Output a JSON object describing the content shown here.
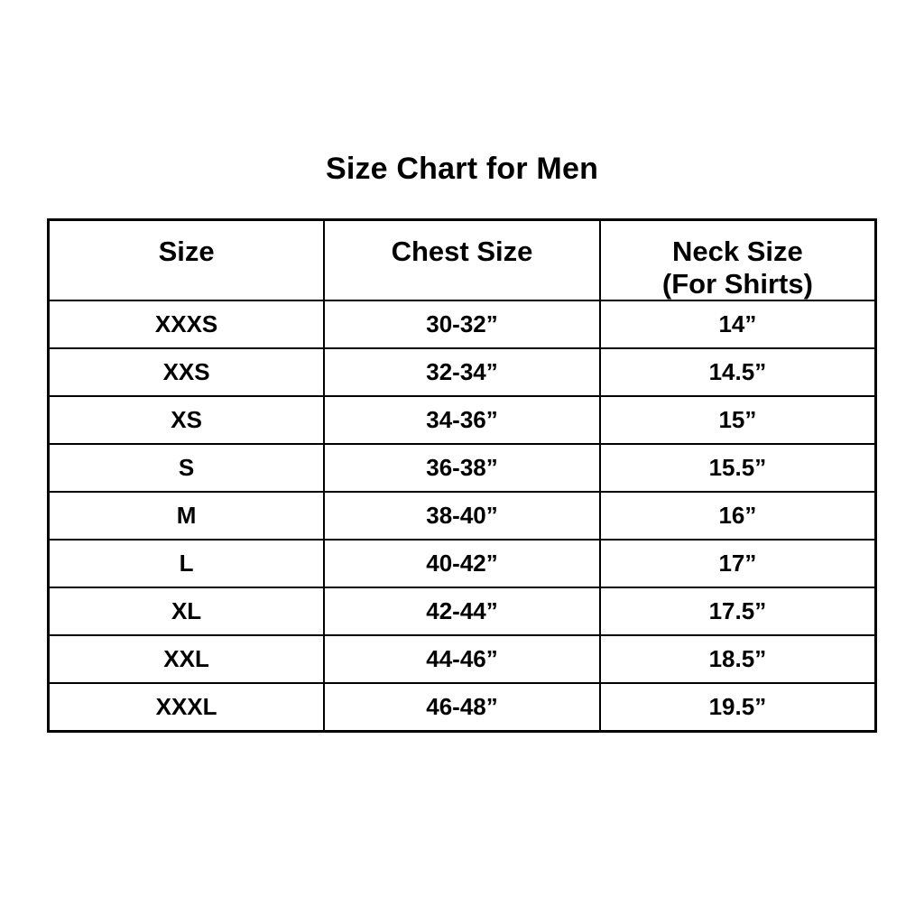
{
  "page": {
    "background_color": "#ffffff",
    "text_color": "#000000",
    "border_color": "#000000"
  },
  "title": "Size Chart for Men",
  "table": {
    "headers": [
      {
        "label": "Size",
        "sublabel": ""
      },
      {
        "label": "Chest Size",
        "sublabel": ""
      },
      {
        "label": "Neck Size",
        "sublabel": "(For Shirts)"
      }
    ],
    "rows": [
      {
        "size": "XXXS",
        "chest": "30-32”",
        "neck": "14”"
      },
      {
        "size": "XXS",
        "chest": "32-34”",
        "neck": "14.5”"
      },
      {
        "size": "XS",
        "chest": "34-36”",
        "neck": "15”"
      },
      {
        "size": "S",
        "chest": "36-38”",
        "neck": "15.5”"
      },
      {
        "size": "M",
        "chest": "38-40”",
        "neck": "16”"
      },
      {
        "size": "L",
        "chest": "40-42”",
        "neck": "17”"
      },
      {
        "size": "XL",
        "chest": "42-44”",
        "neck": "17.5”"
      },
      {
        "size": "XXL",
        "chest": "44-46”",
        "neck": "18.5”"
      },
      {
        "size": "XXXL",
        "chest": "46-48”",
        "neck": "19.5”"
      }
    ]
  },
  "chart_data": {
    "type": "table",
    "title": "Size Chart for Men",
    "columns": [
      "Size",
      "Chest Size",
      "Neck Size (For Shirts)"
    ],
    "categories": [
      "XXXS",
      "XXS",
      "XS",
      "S",
      "M",
      "L",
      "XL",
      "XXL",
      "XXXL"
    ],
    "series": [
      {
        "name": "Chest Size (inches)",
        "values": [
          "30-32",
          "32-34",
          "34-36",
          "36-38",
          "38-40",
          "40-42",
          "42-44",
          "44-46",
          "46-48"
        ]
      },
      {
        "name": "Neck Size for Shirts (inches)",
        "values": [
          14,
          14.5,
          15,
          15.5,
          16,
          17,
          17.5,
          18.5,
          19.5
        ]
      }
    ],
    "layout": {
      "grid": "full-borders",
      "legend": "none",
      "header_row": true
    }
  }
}
